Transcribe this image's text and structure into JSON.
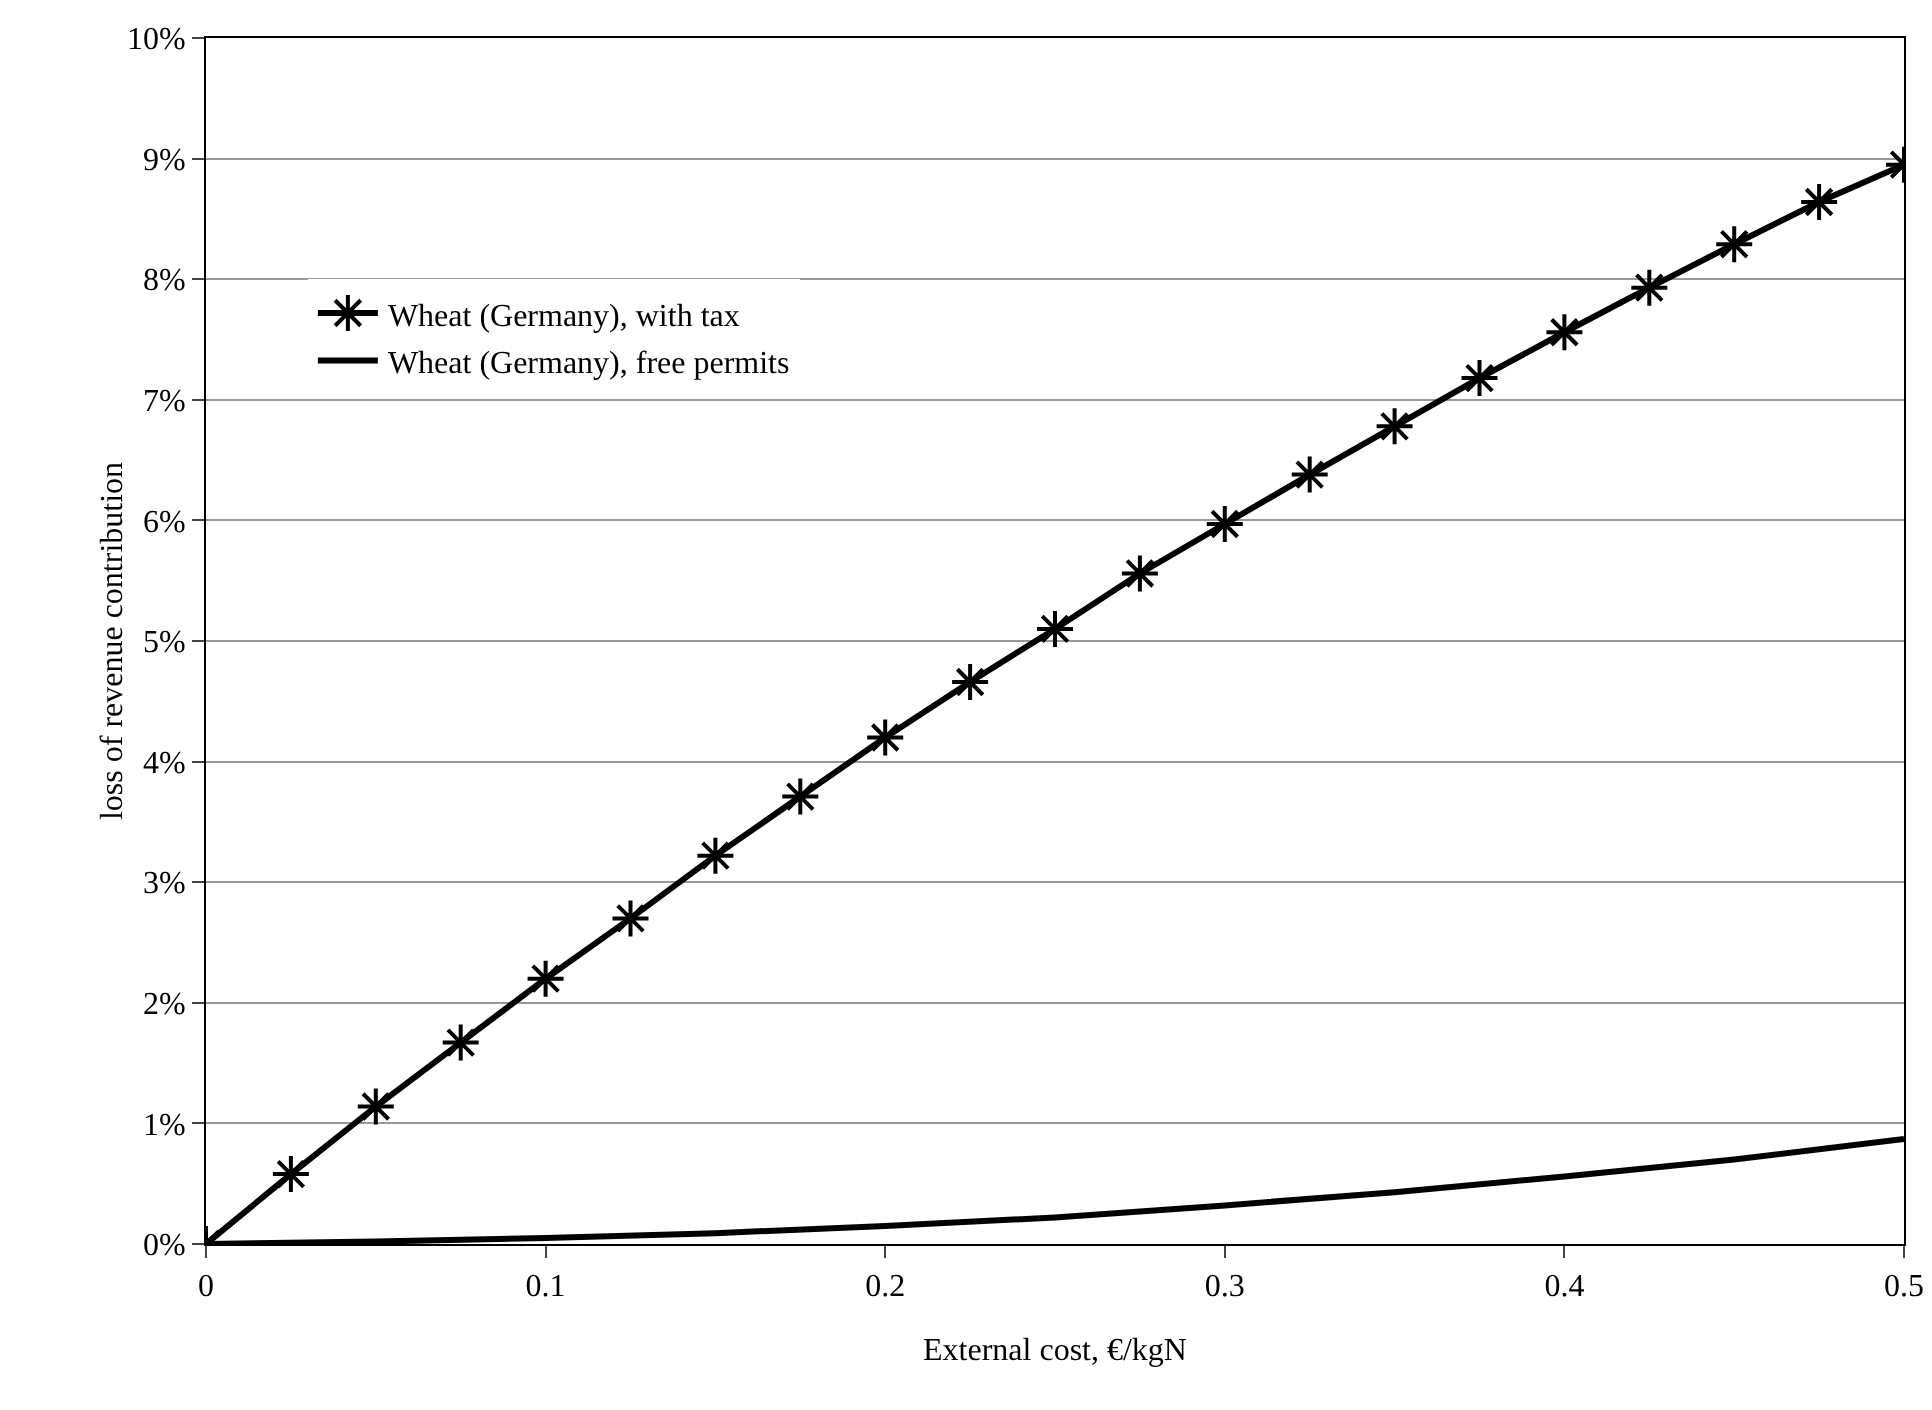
{
  "chart_data": {
    "type": "line",
    "xlabel": "External cost, €/kgN",
    "ylabel": "loss of revenue contribution",
    "xlim": [
      0,
      0.5
    ],
    "xticks": [
      0,
      0.1,
      0.2,
      0.3,
      0.4,
      0.5
    ],
    "ylim": [
      0,
      10
    ],
    "yticks": [
      {
        "value": 0,
        "label": "0%"
      },
      {
        "value": 1,
        "label": "1%"
      },
      {
        "value": 2,
        "label": "2%"
      },
      {
        "value": 3,
        "label": "3%"
      },
      {
        "value": 4,
        "label": "4%"
      },
      {
        "value": 5,
        "label": "5%"
      },
      {
        "value": 6,
        "label": "6%"
      },
      {
        "value": 7,
        "label": "7%"
      },
      {
        "value": 8,
        "label": "8%"
      },
      {
        "value": 9,
        "label": "9%"
      },
      {
        "value": 10,
        "label": "10%"
      }
    ],
    "grid": "y",
    "legend": "top left",
    "series": [
      {
        "name": "Wheat (Germany), with tax",
        "color": "#000000",
        "marker": "cross",
        "line_style": "solid",
        "x": [
          0,
          0.025,
          0.05,
          0.075,
          0.1,
          0.125,
          0.15,
          0.175,
          0.2,
          0.225,
          0.25,
          0.275,
          0.3,
          0.325,
          0.35,
          0.375,
          0.4,
          0.425,
          0.45,
          0.475,
          0.5
        ],
        "values": [
          0,
          0.58,
          1.14,
          1.67,
          2.2,
          2.7,
          3.22,
          3.71,
          4.2,
          4.66,
          5.1,
          5.56,
          5.97,
          6.38,
          6.78,
          7.18,
          7.56,
          7.93,
          8.29,
          8.64,
          8.95
        ]
      },
      {
        "name": "Wheat (Germany), free permits",
        "color": "#000000",
        "marker": "none",
        "line_style": "solid",
        "x": [
          0,
          0.05,
          0.1,
          0.15,
          0.2,
          0.25,
          0.3,
          0.35,
          0.4,
          0.45,
          0.5
        ],
        "values": [
          0,
          0.02,
          0.05,
          0.09,
          0.15,
          0.22,
          0.32,
          0.43,
          0.56,
          0.7,
          0.87
        ]
      }
    ]
  }
}
